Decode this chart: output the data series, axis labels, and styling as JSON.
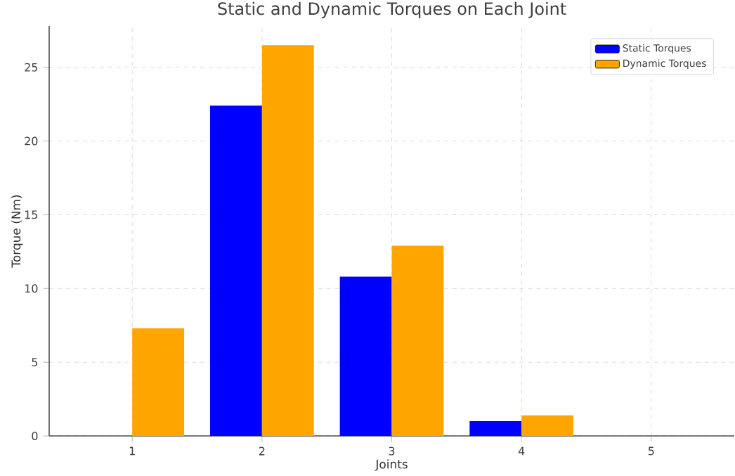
{
  "chart_data": {
    "type": "bar",
    "title": "Static and Dynamic Torques on Each Joint",
    "xlabel": "Joints",
    "ylabel": "Torque (Nm)",
    "x": [
      1,
      2,
      3,
      4,
      5
    ],
    "series": [
      {
        "name": "Static Torques",
        "color": "#0000ff",
        "values": [
          0,
          22.4,
          10.8,
          1.0,
          0
        ]
      },
      {
        "name": "Dynamic Torques",
        "color": "#ffa500",
        "values": [
          7.3,
          26.5,
          12.9,
          1.4,
          0
        ]
      }
    ],
    "xlim": [
      0.36,
      5.64
    ],
    "xticks": [
      1,
      2,
      3,
      4,
      5
    ],
    "ylim": [
      0,
      27.8
    ],
    "yticks": [
      0,
      5,
      10,
      15,
      20,
      25
    ],
    "grid": true,
    "legend": "top right"
  }
}
